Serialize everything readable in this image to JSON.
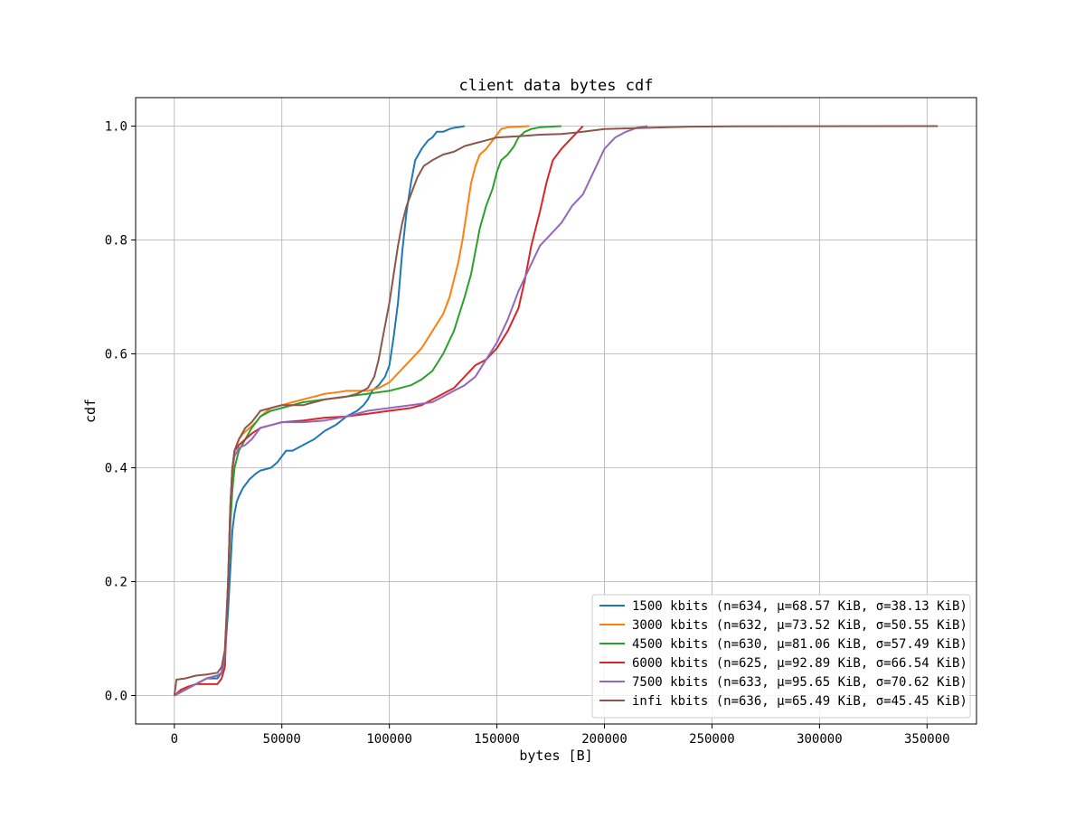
{
  "chart_data": {
    "type": "line",
    "title": "client data bytes cdf",
    "xlabel": "bytes [B]",
    "ylabel": "cdf",
    "xlim": [
      -18000,
      373000
    ],
    "ylim": [
      -0.05,
      1.05
    ],
    "xticks": [
      0,
      50000,
      100000,
      150000,
      200000,
      250000,
      300000,
      350000
    ],
    "xtick_labels": [
      "0",
      "50000",
      "100000",
      "150000",
      "200000",
      "250000",
      "300000",
      "350000"
    ],
    "yticks": [
      0.0,
      0.2,
      0.4,
      0.6,
      0.8,
      1.0
    ],
    "ytick_labels": [
      "0.0",
      "0.2",
      "0.4",
      "0.6",
      "0.8",
      "1.0"
    ],
    "grid": true,
    "legend_position": "lower-right",
    "series": [
      {
        "name": "1500 kbits (n=634, μ=68.57 KiB, σ=38.13 KiB)",
        "color": "#1f77b4",
        "x": [
          0,
          5000,
          10000,
          15000,
          20000,
          22000,
          23500,
          25000,
          26000,
          27000,
          28000,
          29000,
          30000,
          32000,
          35000,
          38000,
          40000,
          45000,
          48000,
          50000,
          52000,
          55000,
          60000,
          65000,
          70000,
          75000,
          80000,
          85000,
          88000,
          90000,
          92000,
          95000,
          98000,
          100000,
          102000,
          104000,
          106000,
          108000,
          110000,
          112000,
          115000,
          118000,
          120000,
          122000,
          125000,
          128000,
          130000,
          132000,
          135000
        ],
        "y": [
          0.0,
          0.01,
          0.02,
          0.03,
          0.03,
          0.04,
          0.07,
          0.15,
          0.22,
          0.29,
          0.32,
          0.34,
          0.35,
          0.365,
          0.38,
          0.39,
          0.395,
          0.4,
          0.41,
          0.42,
          0.43,
          0.43,
          0.44,
          0.45,
          0.465,
          0.475,
          0.49,
          0.5,
          0.51,
          0.52,
          0.535,
          0.545,
          0.56,
          0.58,
          0.63,
          0.69,
          0.78,
          0.85,
          0.9,
          0.94,
          0.96,
          0.975,
          0.98,
          0.99,
          0.99,
          0.995,
          0.997,
          0.998,
          1.0
        ]
      },
      {
        "name": "3000 kbits (n=632, μ=73.52 KiB, σ=50.55 KiB)",
        "color": "#ff7f0e",
        "x": [
          0,
          5000,
          10000,
          15000,
          20000,
          22000,
          23500,
          25000,
          26000,
          27000,
          28000,
          30000,
          32000,
          35000,
          38000,
          40000,
          45000,
          50000,
          55000,
          60000,
          65000,
          70000,
          75000,
          80000,
          90000,
          95000,
          100000,
          105000,
          110000,
          115000,
          120000,
          125000,
          128000,
          130000,
          132000,
          134000,
          136000,
          138000,
          140000,
          142000,
          145000,
          148000,
          150000,
          152000,
          155000,
          160000,
          165000
        ],
        "y": [
          0.0,
          0.01,
          0.02,
          0.03,
          0.035,
          0.04,
          0.07,
          0.2,
          0.3,
          0.38,
          0.43,
          0.45,
          0.46,
          0.47,
          0.48,
          0.49,
          0.505,
          0.51,
          0.515,
          0.52,
          0.525,
          0.53,
          0.532,
          0.535,
          0.535,
          0.54,
          0.55,
          0.57,
          0.59,
          0.61,
          0.64,
          0.67,
          0.7,
          0.73,
          0.76,
          0.8,
          0.85,
          0.9,
          0.93,
          0.95,
          0.96,
          0.975,
          0.985,
          0.995,
          0.998,
          0.999,
          1.0
        ]
      },
      {
        "name": "4500 kbits (n=630, μ=81.06 KiB, σ=57.49 KiB)",
        "color": "#2ca02c",
        "x": [
          0,
          5000,
          10000,
          15000,
          20000,
          22000,
          23500,
          25000,
          26000,
          27000,
          28000,
          30000,
          33000,
          36000,
          40000,
          45000,
          50000,
          60000,
          70000,
          80000,
          90000,
          100000,
          105000,
          110000,
          115000,
          120000,
          125000,
          130000,
          135000,
          138000,
          140000,
          142000,
          145000,
          148000,
          150000,
          152000,
          155000,
          158000,
          160000,
          163000,
          166000,
          170000,
          175000,
          180000
        ],
        "y": [
          0.0,
          0.01,
          0.02,
          0.03,
          0.035,
          0.04,
          0.07,
          0.2,
          0.3,
          0.36,
          0.4,
          0.43,
          0.45,
          0.47,
          0.49,
          0.5,
          0.505,
          0.515,
          0.52,
          0.525,
          0.53,
          0.535,
          0.54,
          0.545,
          0.555,
          0.57,
          0.6,
          0.64,
          0.7,
          0.74,
          0.78,
          0.82,
          0.86,
          0.89,
          0.92,
          0.94,
          0.95,
          0.965,
          0.98,
          0.99,
          0.995,
          0.998,
          0.999,
          1.0
        ]
      },
      {
        "name": "6000 kbits (n=625, μ=92.89 KiB, σ=66.54 KiB)",
        "color": "#d62728",
        "x": [
          0,
          3000,
          6000,
          10000,
          15000,
          20000,
          22000,
          23500,
          25000,
          26000,
          27000,
          28000,
          30000,
          33000,
          36000,
          40000,
          45000,
          50000,
          60000,
          70000,
          80000,
          90000,
          100000,
          110000,
          115000,
          120000,
          125000,
          130000,
          135000,
          140000,
          145000,
          150000,
          155000,
          160000,
          163000,
          166000,
          170000,
          173000,
          176000,
          180000,
          185000,
          190000
        ],
        "y": [
          0.0,
          0.01,
          0.015,
          0.02,
          0.02,
          0.02,
          0.03,
          0.05,
          0.2,
          0.33,
          0.4,
          0.43,
          0.44,
          0.45,
          0.46,
          0.47,
          0.475,
          0.48,
          0.483,
          0.488,
          0.49,
          0.495,
          0.5,
          0.505,
          0.51,
          0.52,
          0.53,
          0.54,
          0.56,
          0.58,
          0.59,
          0.61,
          0.64,
          0.68,
          0.73,
          0.79,
          0.85,
          0.9,
          0.94,
          0.96,
          0.98,
          1.0
        ]
      },
      {
        "name": "7500 kbits (n=633, μ=95.65 KiB, σ=70.62 KiB)",
        "color": "#9467bd",
        "x": [
          0,
          5000,
          10000,
          15000,
          20000,
          22000,
          23500,
          25000,
          26000,
          27000,
          28000,
          30000,
          33000,
          36000,
          40000,
          45000,
          50000,
          60000,
          70000,
          80000,
          90000,
          100000,
          110000,
          120000,
          125000,
          130000,
          135000,
          140000,
          145000,
          150000,
          155000,
          160000,
          165000,
          170000,
          175000,
          180000,
          185000,
          190000,
          195000,
          200000,
          205000,
          210000,
          215000,
          220000
        ],
        "y": [
          0.0,
          0.01,
          0.02,
          0.03,
          0.035,
          0.04,
          0.07,
          0.2,
          0.33,
          0.4,
          0.42,
          0.435,
          0.44,
          0.45,
          0.47,
          0.475,
          0.48,
          0.48,
          0.483,
          0.49,
          0.5,
          0.505,
          0.51,
          0.515,
          0.525,
          0.535,
          0.545,
          0.56,
          0.59,
          0.62,
          0.66,
          0.71,
          0.75,
          0.79,
          0.81,
          0.83,
          0.86,
          0.88,
          0.92,
          0.96,
          0.98,
          0.99,
          0.997,
          1.0
        ]
      },
      {
        "name": "infi kbits (n=636, μ=65.49 KiB, σ=45.45 KiB)",
        "color": "#8c564b",
        "x": [
          0,
          1000,
          5000,
          10000,
          15000,
          20000,
          22000,
          23500,
          25000,
          26000,
          27000,
          28000,
          30000,
          33000,
          36000,
          40000,
          45000,
          50000,
          60000,
          70000,
          80000,
          85000,
          90000,
          93000,
          95000,
          97000,
          100000,
          102000,
          104000,
          106000,
          108000,
          110000,
          113000,
          116000,
          120000,
          125000,
          130000,
          135000,
          140000,
          145000,
          150000,
          160000,
          170000,
          180000,
          190000,
          200000,
          220000,
          240000,
          260000,
          300000,
          355000
        ],
        "y": [
          0.0,
          0.028,
          0.03,
          0.035,
          0.037,
          0.04,
          0.05,
          0.08,
          0.2,
          0.33,
          0.4,
          0.43,
          0.45,
          0.47,
          0.48,
          0.5,
          0.505,
          0.51,
          0.51,
          0.52,
          0.525,
          0.53,
          0.54,
          0.56,
          0.59,
          0.63,
          0.69,
          0.74,
          0.79,
          0.83,
          0.86,
          0.88,
          0.91,
          0.93,
          0.94,
          0.95,
          0.955,
          0.965,
          0.97,
          0.975,
          0.98,
          0.982,
          0.985,
          0.986,
          0.99,
          0.995,
          0.997,
          0.999,
          0.9995,
          0.9998,
          1.0
        ]
      }
    ]
  }
}
